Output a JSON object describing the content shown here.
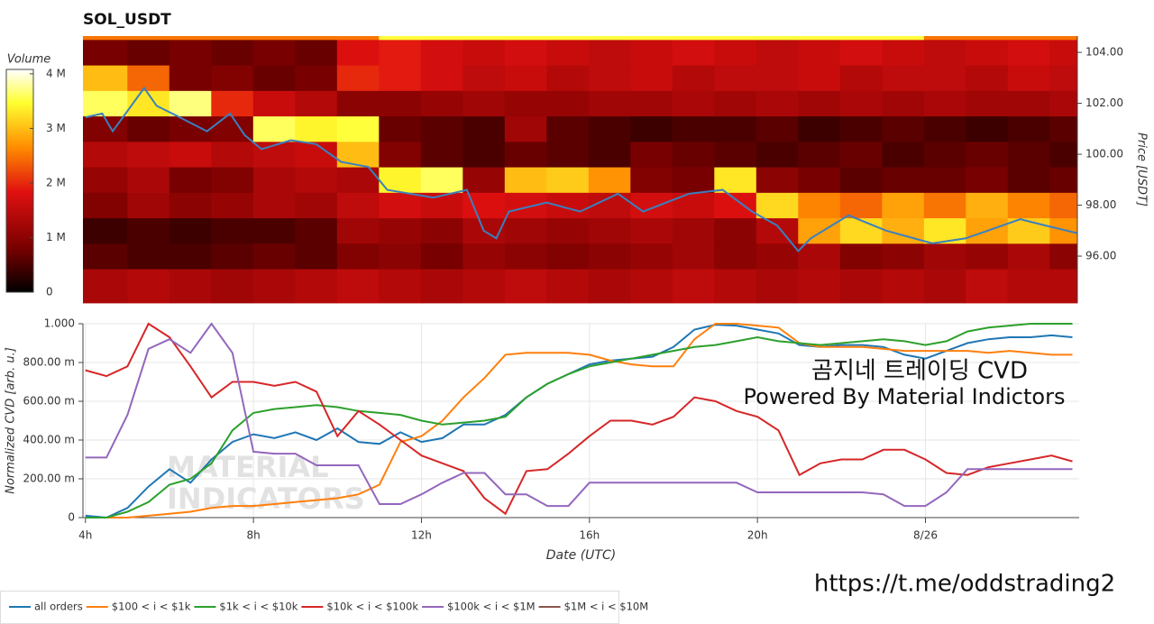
{
  "chart_data": [
    {
      "type": "heatmap",
      "title": "SOL_USDT",
      "x_bins": [
        3.94,
        5,
        6,
        7,
        8,
        9,
        10,
        11,
        12,
        13,
        14,
        15,
        16,
        17,
        18,
        19,
        20,
        21,
        22,
        23,
        24,
        25,
        26,
        27,
        27.66
      ],
      "y_bins": [
        94.16,
        95.5,
        96.5,
        97.5,
        98.5,
        99.5,
        100.5,
        101.5,
        102.5,
        103.5,
        104.5,
        104.64
      ],
      "z": [
        [
          1.3,
          1.4,
          1.3,
          1.2,
          1.3,
          1.4,
          1.5,
          1.4,
          1.3,
          1.4,
          1.5,
          1.4,
          1.3,
          1.4,
          1.5,
          1.4,
          1.3,
          1.4,
          1.3,
          1.4,
          1.3,
          1.5,
          1.4,
          1.4
        ],
        [
          0.6,
          0.5,
          0.5,
          0.6,
          0.7,
          0.6,
          0.9,
          1.0,
          0.8,
          1.1,
          1.0,
          0.9,
          1.0,
          1.1,
          1.2,
          1.0,
          1.1,
          1.3,
          0.9,
          1.0,
          1.2,
          1.1,
          1.3,
          1.0
        ],
        [
          0.4,
          0.5,
          0.4,
          0.5,
          0.5,
          0.6,
          1.2,
          1.1,
          1.0,
          1.3,
          1.2,
          1.1,
          1.2,
          1.3,
          1.2,
          1.0,
          1.4,
          2.8,
          3.2,
          2.9,
          3.3,
          2.8,
          3.1,
          2.7
        ],
        [
          0.9,
          1.2,
          1.0,
          1.1,
          1.3,
          1.2,
          1.5,
          1.7,
          1.6,
          1.8,
          1.7,
          1.6,
          1.5,
          1.7,
          1.6,
          1.8,
          3.2,
          2.6,
          2.4,
          2.8,
          2.5,
          2.9,
          2.6,
          2.4
        ],
        [
          1.1,
          1.3,
          0.8,
          0.9,
          1.3,
          1.4,
          1.3,
          3.4,
          3.6,
          1.1,
          3.0,
          3.1,
          2.7,
          0.9,
          0.8,
          3.3,
          1.0,
          0.8,
          0.6,
          0.7,
          0.7,
          0.8,
          0.6,
          0.7
        ],
        [
          1.4,
          1.5,
          1.6,
          1.4,
          1.5,
          1.6,
          3.0,
          0.9,
          0.6,
          0.5,
          0.7,
          0.6,
          0.5,
          0.8,
          0.7,
          0.6,
          0.5,
          0.6,
          0.7,
          0.5,
          0.6,
          0.7,
          0.6,
          0.5
        ],
        [
          0.9,
          0.7,
          0.8,
          0.9,
          3.6,
          3.4,
          3.5,
          0.7,
          0.6,
          0.5,
          1.2,
          0.6,
          0.5,
          0.4,
          0.5,
          0.5,
          0.6,
          0.4,
          0.5,
          0.6,
          0.5,
          0.4,
          0.5,
          0.6
        ],
        [
          3.6,
          3.3,
          3.7,
          2.0,
          1.6,
          1.4,
          1.0,
          1.0,
          1.1,
          1.2,
          1.1,
          1.1,
          1.2,
          1.2,
          1.3,
          1.2,
          1.3,
          1.2,
          1.3,
          1.2,
          1.3,
          1.2,
          1.2,
          1.3
        ],
        [
          3.0,
          2.4,
          0.8,
          0.9,
          0.7,
          0.8,
          2.0,
          1.9,
          1.7,
          1.5,
          1.6,
          1.4,
          1.5,
          1.6,
          1.4,
          1.5,
          1.5,
          1.6,
          1.4,
          1.5,
          1.5,
          1.4,
          1.6,
          1.5
        ],
        [
          0.8,
          0.7,
          0.8,
          0.7,
          0.8,
          0.7,
          1.8,
          1.9,
          1.7,
          1.6,
          1.7,
          1.6,
          1.5,
          1.6,
          1.7,
          1.6,
          1.5,
          1.6,
          1.7,
          1.6,
          1.5,
          1.6,
          1.7,
          1.6
        ],
        [
          2.5,
          2.5,
          2.5,
          2.5,
          2.5,
          2.5,
          2.5,
          3.5,
          3.5,
          3.5,
          3.5,
          3.5,
          3.5,
          3.5,
          3.5,
          3.5,
          3.5,
          3.5,
          3.5,
          3.5,
          2.5,
          2.5,
          2.5,
          2.5
        ]
      ],
      "colorscale": [
        [
          0,
          "#000000"
        ],
        [
          0.2,
          "#7a0000"
        ],
        [
          0.45,
          "#e01010"
        ],
        [
          0.65,
          "#ff8c00"
        ],
        [
          0.85,
          "#ffff30"
        ],
        [
          1,
          "#ffffff"
        ]
      ],
      "colorbar_label": "Volume",
      "zlim": [
        0,
        4.08
      ],
      "zticks": [
        0,
        {
          "value": 1,
          "label": "1 M"
        },
        {
          "value": 2,
          "label": "2 M"
        },
        {
          "value": 3,
          "label": "3 M"
        },
        {
          "value": 4,
          "label": "4 M"
        }
      ],
      "series": [
        {
          "color": "#3a80c0",
          "x": [
            4,
            4.4,
            4.65,
            5.4,
            5.7,
            6.25,
            6.9,
            7.45,
            7.8,
            8.2,
            8.9,
            9.5,
            10.1,
            10.75,
            11.2,
            12.3,
            13.1,
            13.5,
            13.8,
            14.1,
            15.0,
            15.8,
            16.7,
            17.3,
            18.4,
            19.2,
            19.9,
            20.5,
            21.0,
            21.3,
            22.2,
            23.1,
            24.2,
            25.0,
            26.3,
            26.9,
            27.66
          ],
          "values": [
            101.45,
            101.6,
            100.9,
            102.6,
            101.9,
            101.45,
            100.9,
            101.6,
            100.75,
            100.2,
            100.55,
            100.4,
            99.7,
            99.5,
            98.6,
            98.3,
            98.6,
            97.0,
            96.7,
            97.75,
            98.1,
            97.75,
            98.45,
            97.75,
            98.45,
            98.6,
            97.75,
            97.2,
            96.2,
            96.7,
            97.6,
            97.0,
            96.5,
            96.7,
            97.45,
            97.2,
            96.9
          ]
        }
      ],
      "xlim": [
        3.94,
        27.66
      ],
      "ylim": [
        94.16,
        104.64
      ],
      "y_axis_side": "right",
      "y_label": "Price [USDT]",
      "yticks": [
        {
          "value": 96,
          "label": "96.00"
        },
        {
          "value": 98,
          "label": "98.00"
        },
        {
          "value": 100,
          "label": "100.00"
        },
        {
          "value": 102,
          "label": "102.00"
        },
        {
          "value": 104,
          "label": "104.00"
        }
      ]
    },
    {
      "type": "line",
      "x_label": "Date (UTC)",
      "y_label": "Normalized CVD [arb. u.]",
      "xlim": [
        3.94,
        27.66
      ],
      "ylim": [
        0,
        1
      ],
      "xticks": [
        {
          "value": 4,
          "label": "4h"
        },
        {
          "value": 8,
          "label": "8h"
        },
        {
          "value": 12,
          "label": "12h"
        },
        {
          "value": 16,
          "label": "16h"
        },
        {
          "value": 20,
          "label": "20h"
        },
        {
          "value": 24,
          "label": "8/26"
        }
      ],
      "yticks": [
        0,
        {
          "value": 0.2,
          "label": "200.00 m"
        },
        {
          "value": 0.4,
          "label": "400.00 m"
        },
        {
          "value": 0.6,
          "label": "600.00 m"
        },
        {
          "value": 0.8,
          "label": "800.00 m"
        },
        {
          "value": 1,
          "label": "1.000"
        }
      ],
      "grid": true,
      "legend": "bottom",
      "annotations": [
        "곰지네 트레이딩 CVD",
        "Powered By Material Indictors"
      ],
      "watermark": [
        "MATERIAL",
        "INDICATORS"
      ],
      "x": [
        4,
        4.5,
        5,
        5.5,
        6,
        6.5,
        7,
        7.5,
        8,
        8.5,
        9,
        9.5,
        10,
        10.5,
        11,
        11.5,
        12,
        12.5,
        13,
        13.5,
        14,
        14.5,
        15,
        15.5,
        16,
        16.5,
        17,
        17.5,
        18,
        18.5,
        19,
        19.5,
        20,
        20.5,
        21,
        21.5,
        22,
        22.5,
        23,
        23.5,
        24,
        24.5,
        25,
        25.5,
        26,
        26.5,
        27,
        27.5
      ],
      "series": [
        {
          "name": "all orders",
          "color": "#1f77b4",
          "values": [
            0.01,
            0.0,
            0.05,
            0.16,
            0.25,
            0.18,
            0.3,
            0.39,
            0.43,
            0.41,
            0.44,
            0.4,
            0.46,
            0.39,
            0.38,
            0.44,
            0.39,
            0.41,
            0.48,
            0.48,
            0.53,
            0.62,
            0.69,
            0.74,
            0.79,
            0.81,
            0.82,
            0.83,
            0.88,
            0.97,
            0.995,
            0.99,
            0.97,
            0.95,
            0.89,
            0.88,
            0.89,
            0.89,
            0.88,
            0.84,
            0.82,
            0.86,
            0.9,
            0.92,
            0.93,
            0.93,
            0.94,
            0.93
          ]
        },
        {
          "name": "$100 < i < $1k",
          "color": "#ff7f0e",
          "values": [
            0,
            0,
            0,
            0.01,
            0.02,
            0.03,
            0.05,
            0.06,
            0.06,
            0.07,
            0.08,
            0.09,
            0.1,
            0.12,
            0.17,
            0.39,
            0.42,
            0.5,
            0.62,
            0.72,
            0.84,
            0.85,
            0.85,
            0.85,
            0.84,
            0.81,
            0.79,
            0.78,
            0.78,
            0.92,
            1.0,
            1.0,
            0.99,
            0.98,
            0.9,
            0.88,
            0.88,
            0.88,
            0.87,
            0.86,
            0.86,
            0.86,
            0.86,
            0.85,
            0.86,
            0.85,
            0.84,
            0.84
          ]
        },
        {
          "name": "$1k < i < $10k",
          "color": "#2ca02c",
          "values": [
            0,
            0,
            0.03,
            0.08,
            0.17,
            0.2,
            0.28,
            0.45,
            0.54,
            0.56,
            0.57,
            0.58,
            0.57,
            0.55,
            0.54,
            0.53,
            0.5,
            0.48,
            0.49,
            0.5,
            0.52,
            0.62,
            0.69,
            0.74,
            0.78,
            0.8,
            0.82,
            0.84,
            0.86,
            0.88,
            0.89,
            0.91,
            0.93,
            0.91,
            0.9,
            0.89,
            0.9,
            0.91,
            0.92,
            0.91,
            0.89,
            0.91,
            0.96,
            0.98,
            0.99,
            1.0,
            1.0,
            1.0
          ]
        },
        {
          "name": "$10k < i < $100k",
          "color": "#d62728",
          "values": [
            0.76,
            0.73,
            0.78,
            1.0,
            0.93,
            0.78,
            0.62,
            0.7,
            0.7,
            0.68,
            0.7,
            0.65,
            0.42,
            0.55,
            0.48,
            0.4,
            0.32,
            0.28,
            0.24,
            0.1,
            0.02,
            0.24,
            0.25,
            0.33,
            0.42,
            0.5,
            0.5,
            0.48,
            0.52,
            0.62,
            0.6,
            0.55,
            0.52,
            0.45,
            0.22,
            0.28,
            0.3,
            0.3,
            0.35,
            0.35,
            0.3,
            0.23,
            0.22,
            0.26,
            0.28,
            0.3,
            0.32,
            0.29
          ]
        },
        {
          "name": "$100k < i < $1M",
          "color": "#9467bd",
          "values": [
            0.31,
            0.31,
            0.53,
            0.87,
            0.92,
            0.85,
            1.0,
            0.85,
            0.34,
            0.33,
            0.33,
            0.27,
            0.27,
            0.27,
            0.07,
            0.07,
            0.12,
            0.18,
            0.23,
            0.23,
            0.12,
            0.12,
            0.06,
            0.06,
            0.18,
            0.18,
            0.18,
            0.18,
            0.18,
            0.18,
            0.18,
            0.18,
            0.13,
            0.13,
            0.13,
            0.13,
            0.13,
            0.13,
            0.12,
            0.06,
            0.06,
            0.13,
            0.25,
            0.25,
            0.25,
            0.25,
            0.25,
            0.25
          ]
        },
        {
          "name": "$1M < i < $10M",
          "color": "#8c564b",
          "values": [
            null,
            null,
            null,
            null,
            null,
            null,
            null,
            null,
            null,
            null,
            null,
            null,
            null,
            null,
            null,
            null,
            null,
            null,
            null,
            null,
            null,
            null,
            null,
            null,
            null,
            null,
            null,
            null,
            null,
            null,
            null,
            null,
            null,
            null,
            null,
            null,
            null,
            null,
            null,
            null,
            null,
            null,
            null,
            null,
            null,
            null,
            null,
            null
          ]
        }
      ]
    }
  ],
  "caption": "https://t.me/oddstrading2"
}
